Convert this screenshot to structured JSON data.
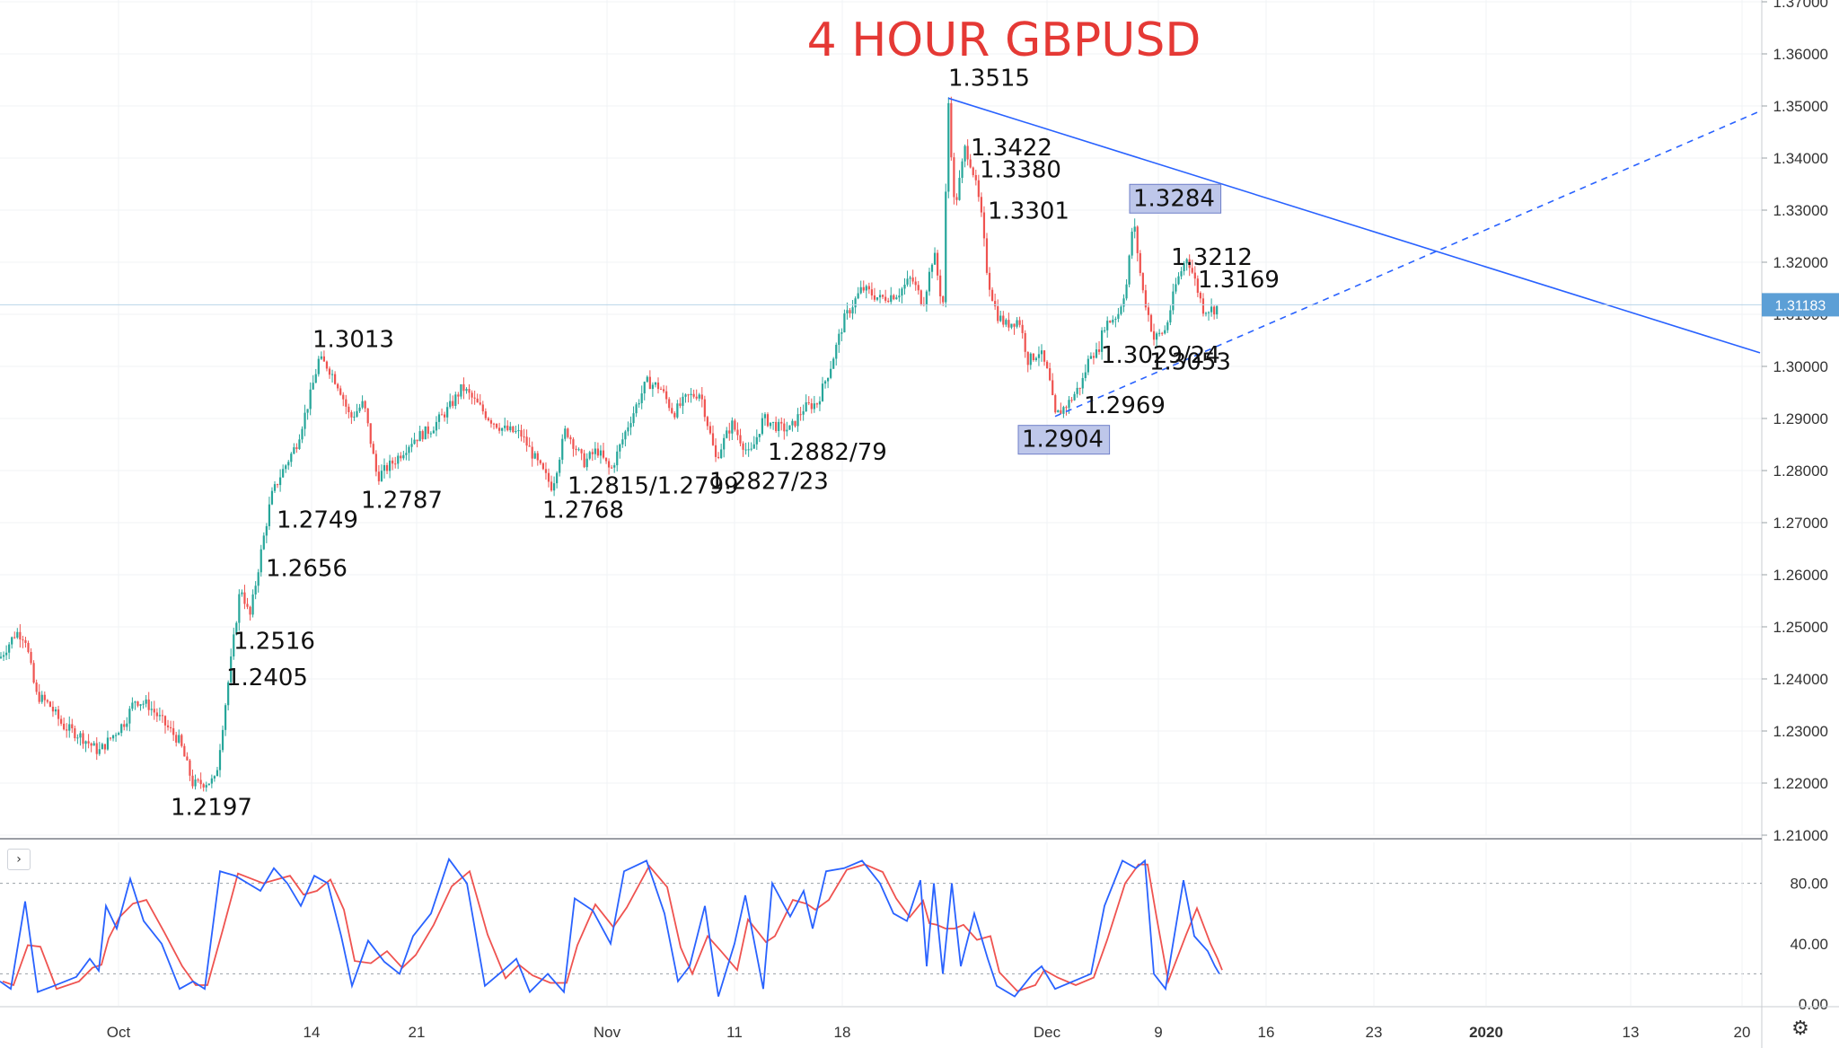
{
  "chart_data": [
    {
      "type": "candlestick",
      "title": "4 HOUR GBPUSD",
      "title_color": "#e53935",
      "up_color": "#26a69a",
      "down_color": "#ef5350",
      "ylim": [
        1.21,
        1.37
      ],
      "y_ticks": [
        "1.21000",
        "1.22000",
        "1.23000",
        "1.24000",
        "1.25000",
        "1.26000",
        "1.27000",
        "1.28000",
        "1.29000",
        "1.30000",
        "1.31000",
        "1.32000",
        "1.33000",
        "1.34000",
        "1.35000",
        "1.36000",
        "1.37000"
      ],
      "x_ticks": [
        "Oct",
        "14",
        "21",
        "Nov",
        "11",
        "18",
        "Dec",
        "9",
        "16",
        "23",
        "2020",
        "13",
        "20"
      ],
      "current_price": "1.31183",
      "current_price_color": "#5c9fd6",
      "price_path": [
        [
          0,
          1.244
        ],
        [
          18,
          1.249
        ],
        [
          28,
          1.248
        ],
        [
          40,
          1.237
        ],
        [
          55,
          1.235
        ],
        [
          70,
          1.231
        ],
        [
          90,
          1.229
        ],
        [
          110,
          1.226
        ],
        [
          125,
          1.229
        ],
        [
          140,
          1.232
        ],
        [
          150,
          1.236
        ],
        [
          165,
          1.235
        ],
        [
          180,
          1.232
        ],
        [
          200,
          1.228
        ],
        [
          215,
          1.2197
        ],
        [
          240,
          1.2205
        ],
        [
          255,
          1.2405
        ],
        [
          268,
          1.258
        ],
        [
          278,
          1.2516
        ],
        [
          292,
          1.2656
        ],
        [
          302,
          1.2749
        ],
        [
          312,
          1.279
        ],
        [
          330,
          1.285
        ],
        [
          345,
          1.294
        ],
        [
          355,
          1.3013
        ],
        [
          365,
          1.3
        ],
        [
          378,
          1.296
        ],
        [
          390,
          1.29
        ],
        [
          405,
          1.293
        ],
        [
          420,
          1.2787
        ],
        [
          440,
          1.282
        ],
        [
          460,
          1.286
        ],
        [
          480,
          1.288
        ],
        [
          500,
          1.292
        ],
        [
          515,
          1.296
        ],
        [
          530,
          1.293
        ],
        [
          545,
          1.29
        ],
        [
          560,
          1.288
        ],
        [
          580,
          1.287
        ],
        [
          600,
          1.281
        ],
        [
          615,
          1.2768
        ],
        [
          630,
          1.288
        ],
        [
          650,
          1.2815
        ],
        [
          665,
          1.284
        ],
        [
          680,
          1.2799
        ],
        [
          700,
          1.289
        ],
        [
          720,
          1.297
        ],
        [
          735,
          1.296
        ],
        [
          750,
          1.291
        ],
        [
          765,
          1.294
        ],
        [
          780,
          1.295
        ],
        [
          797,
          1.2823
        ],
        [
          815,
          1.289
        ],
        [
          835,
          1.2827
        ],
        [
          850,
          1.29
        ],
        [
          868,
          1.2882
        ],
        [
          880,
          1.2879
        ],
        [
          895,
          1.292
        ],
        [
          910,
          1.293
        ],
        [
          925,
          1.3
        ],
        [
          940,
          1.309
        ],
        [
          960,
          1.315
        ],
        [
          980,
          1.313
        ],
        [
          1000,
          1.314
        ],
        [
          1015,
          1.317
        ],
        [
          1028,
          1.312
        ],
        [
          1040,
          1.322
        ],
        [
          1050,
          1.311
        ],
        [
          1056,
          1.3515
        ],
        [
          1063,
          1.33
        ],
        [
          1075,
          1.3422
        ],
        [
          1083,
          1.338
        ],
        [
          1092,
          1.3301
        ],
        [
          1100,
          1.317
        ],
        [
          1110,
          1.31
        ],
        [
          1120,
          1.308
        ],
        [
          1135,
          1.309
        ],
        [
          1145,
          1.301
        ],
        [
          1158,
          1.303
        ],
        [
          1168,
          1.298
        ],
        [
          1175,
          1.2904
        ],
        [
          1190,
          1.293
        ],
        [
          1205,
          1.2969
        ],
        [
          1215,
          1.3029
        ],
        [
          1222,
          1.3024
        ],
        [
          1230,
          1.308
        ],
        [
          1245,
          1.31
        ],
        [
          1255,
          1.316
        ],
        [
          1262,
          1.3284
        ],
        [
          1272,
          1.315
        ],
        [
          1285,
          1.3053
        ],
        [
          1298,
          1.307
        ],
        [
          1310,
          1.316
        ],
        [
          1322,
          1.3212
        ],
        [
          1330,
          1.3169
        ],
        [
          1340,
          1.311
        ],
        [
          1352,
          1.311
        ],
        [
          1358,
          1.3118
        ]
      ],
      "annotations": [
        {
          "text": "1.3515",
          "x": 1056,
          "y": 1.3515,
          "pos": "above"
        },
        {
          "text": "1.3422",
          "x": 1075,
          "y": 1.3422,
          "pos": "right"
        },
        {
          "text": "1.3380",
          "x": 1085,
          "y": 1.338,
          "pos": "right"
        },
        {
          "text": "1.3301",
          "x": 1094,
          "y": 1.3301,
          "pos": "right"
        },
        {
          "text": "1.3284",
          "x": 1262,
          "y": 1.3284,
          "pos": "above",
          "highlight": true
        },
        {
          "text": "1.3212",
          "x": 1298,
          "y": 1.3212,
          "pos": "right"
        },
        {
          "text": "1.3169",
          "x": 1328,
          "y": 1.3169,
          "pos": "right"
        },
        {
          "text": "1.3053",
          "x": 1280,
          "y": 1.3053,
          "pos": "below"
        },
        {
          "text": "1.3029/24",
          "x": 1220,
          "y": 1.3024,
          "pos": "right"
        },
        {
          "text": "1.2969",
          "x": 1207,
          "y": 1.2969,
          "pos": "below"
        },
        {
          "text": "1.2904",
          "x": 1138,
          "y": 1.2904,
          "pos": "below",
          "highlight": true
        },
        {
          "text": "1.3013",
          "x": 348,
          "y": 1.3013,
          "pos": "above"
        },
        {
          "text": "1.2749",
          "x": 308,
          "y": 1.2749,
          "pos": "below"
        },
        {
          "text": "1.2656",
          "x": 296,
          "y": 1.2656,
          "pos": "below"
        },
        {
          "text": "1.2516",
          "x": 260,
          "y": 1.2516,
          "pos": "below"
        },
        {
          "text": "1.2405",
          "x": 246,
          "y": 1.2405,
          "pos": "right"
        },
        {
          "text": "1.2197",
          "x": 190,
          "y": 1.2197,
          "pos": "below"
        },
        {
          "text": "1.2787",
          "x": 402,
          "y": 1.2787,
          "pos": "below"
        },
        {
          "text": "1.2768",
          "x": 604,
          "y": 1.2768,
          "pos": "below"
        },
        {
          "text": "1.2815/1.2799",
          "x": 632,
          "y": 1.2815,
          "pos": "below"
        },
        {
          "text": "1.2827/23",
          "x": 790,
          "y": 1.2823,
          "pos": "below"
        },
        {
          "text": "1.2882/79",
          "x": 855,
          "y": 1.2879,
          "pos": "below"
        }
      ],
      "trendlines": [
        {
          "name": "resistance",
          "style": "solid",
          "color": "#2962ff",
          "from": [
            1056,
            1.3515
          ],
          "to": [
            1960,
            1.3026
          ]
        },
        {
          "name": "support",
          "style": "dashed",
          "color": "#2962ff",
          "from": [
            1175,
            1.2904
          ],
          "to": [
            1960,
            1.349
          ]
        }
      ]
    },
    {
      "type": "line",
      "subtype": "stochastic",
      "ylim": [
        0,
        100
      ],
      "y_ticks": [
        "80.00",
        "40.00",
        "0.00"
      ],
      "levels": [
        80,
        20
      ],
      "k_color": "#2962ff",
      "d_color": "#ef5350",
      "k_path": [
        [
          0,
          15
        ],
        [
          12,
          10
        ],
        [
          28,
          68
        ],
        [
          42,
          8
        ],
        [
          60,
          12
        ],
        [
          85,
          18
        ],
        [
          100,
          30
        ],
        [
          110,
          22
        ],
        [
          118,
          65
        ],
        [
          130,
          50
        ],
        [
          145,
          83
        ],
        [
          160,
          55
        ],
        [
          180,
          40
        ],
        [
          200,
          10
        ],
        [
          215,
          15
        ],
        [
          228,
          10
        ],
        [
          245,
          88
        ],
        [
          262,
          85
        ],
        [
          290,
          75
        ],
        [
          305,
          90
        ],
        [
          320,
          80
        ],
        [
          335,
          65
        ],
        [
          350,
          85
        ],
        [
          365,
          80
        ],
        [
          380,
          45
        ],
        [
          392,
          12
        ],
        [
          410,
          42
        ],
        [
          428,
          28
        ],
        [
          445,
          20
        ],
        [
          460,
          45
        ],
        [
          480,
          60
        ],
        [
          500,
          96
        ],
        [
          520,
          80
        ],
        [
          540,
          12
        ],
        [
          560,
          22
        ],
        [
          575,
          30
        ],
        [
          590,
          8
        ],
        [
          610,
          20
        ],
        [
          628,
          8
        ],
        [
          640,
          70
        ],
        [
          660,
          62
        ],
        [
          680,
          40
        ],
        [
          695,
          88
        ],
        [
          720,
          95
        ],
        [
          740,
          60
        ],
        [
          755,
          15
        ],
        [
          768,
          25
        ],
        [
          785,
          65
        ],
        [
          800,
          5
        ],
        [
          818,
          40
        ],
        [
          830,
          72
        ],
        [
          850,
          10
        ],
        [
          860,
          80
        ],
        [
          880,
          58
        ],
        [
          895,
          75
        ],
        [
          905,
          50
        ],
        [
          920,
          88
        ],
        [
          940,
          90
        ],
        [
          960,
          95
        ],
        [
          980,
          80
        ],
        [
          995,
          60
        ],
        [
          1010,
          55
        ],
        [
          1025,
          82
        ],
        [
          1032,
          25
        ],
        [
          1040,
          80
        ],
        [
          1050,
          20
        ],
        [
          1060,
          80
        ],
        [
          1070,
          25
        ],
        [
          1085,
          60
        ],
        [
          1100,
          30
        ],
        [
          1110,
          12
        ],
        [
          1130,
          5
        ],
        [
          1150,
          20
        ],
        [
          1160,
          25
        ],
        [
          1175,
          10
        ],
        [
          1195,
          15
        ],
        [
          1215,
          20
        ],
        [
          1230,
          65
        ],
        [
          1250,
          95
        ],
        [
          1265,
          90
        ],
        [
          1275,
          95
        ],
        [
          1285,
          20
        ],
        [
          1298,
          10
        ],
        [
          1318,
          82
        ],
        [
          1330,
          45
        ],
        [
          1345,
          35
        ],
        [
          1353,
          25
        ],
        [
          1358,
          20
        ]
      ]
    }
  ]
}
